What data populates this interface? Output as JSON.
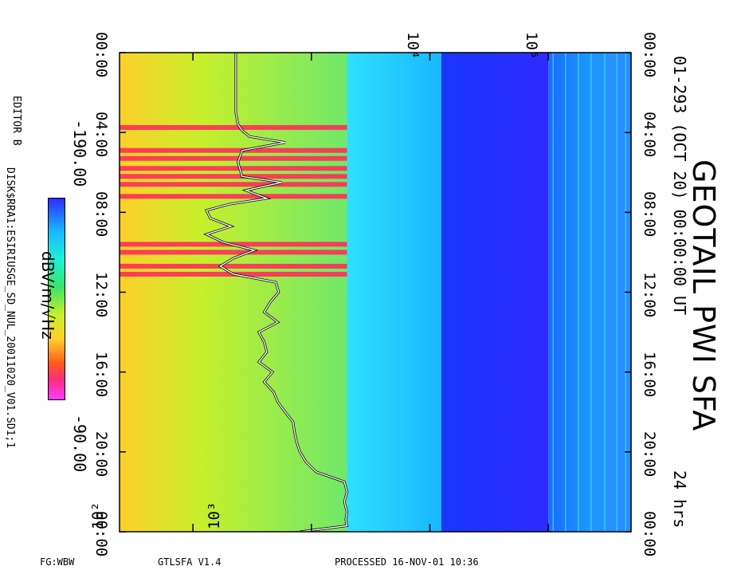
{
  "header": {
    "title": "GEOTAIL PWI SFA",
    "subtitle": "01-293 (OCT 20) 00:00:00 UT",
    "duration": "24 hrs"
  },
  "colorbar": {
    "min_label": "-190.00",
    "max_label": "-90.00",
    "unit_label": "dBV/m/√Hz"
  },
  "side_labels": {
    "editor": "EDITOR B",
    "file": "DISK$RRA1:ESIRIUSGE_SD_NUL_20011020_V01.SD1;1"
  },
  "footer": {
    "left": "FG:WBW",
    "version": "GTLSFA   V1.4",
    "processed": "PROCESSED 16-NOV-01  10:36"
  },
  "chart_data": {
    "type": "heatmap",
    "title": "GEOTAIL PWI SFA",
    "time_axis": {
      "label": "UT",
      "range_hours": [
        0,
        24
      ],
      "ticks": [
        "00:00",
        "04:00",
        "08:00",
        "12:00",
        "16:00",
        "20:00",
        "00:00"
      ],
      "tick_hours": [
        0,
        4,
        8,
        12,
        16,
        20,
        24
      ]
    },
    "frequency_axis": {
      "scale": "log",
      "unit": "Hz",
      "range": [
        24,
        500000
      ],
      "ticks": [
        "10²",
        "10³",
        "10⁴",
        "10⁵"
      ],
      "tick_values": [
        100,
        1000,
        10000,
        100000
      ],
      "band_edges_hz": [
        24,
        2000,
        12500,
        100000,
        500000
      ]
    },
    "colorbar_range_dB": [
      -190,
      -90
    ],
    "colorscale": [
      "#2d2bff",
      "#19b7ff",
      "#1cf0d8",
      "#39e46b",
      "#c8ef2b",
      "#ffd02a",
      "#ff5a1e",
      "#ff2c7a",
      "#ff3cff"
    ],
    "trace": {
      "description": "white line with black edge (profile)",
      "hours": [
        0,
        1,
        2,
        3,
        3.6,
        3.9,
        4.2,
        4.5,
        4.9,
        5.5,
        6.2,
        6.5,
        6.9,
        7.3,
        7.6,
        7.9,
        8.3,
        8.7,
        9.1,
        9.5,
        9.9,
        10.3,
        10.7,
        11.1,
        11.5,
        12.0,
        12.5,
        13.0,
        13.5,
        14.0,
        14.5,
        15.0,
        15.5,
        16.0,
        16.5,
        17.0,
        17.5,
        18.0,
        18.5,
        19.0,
        19.5,
        20.0,
        20.5,
        21.0,
        21.5,
        22.0,
        22.5,
        23.0,
        23.4,
        23.7,
        24.0
      ],
      "freq_hz": [
        230,
        230,
        230,
        230,
        240,
        260,
        300,
        600,
        260,
        240,
        260,
        560,
        280,
        420,
        200,
        130,
        140,
        210,
        130,
        180,
        330,
        220,
        170,
        220,
        500,
        530,
        450,
        400,
        520,
        360,
        400,
        420,
        360,
        470,
        400,
        480,
        520,
        600,
        700,
        720,
        750,
        800,
        900,
        1100,
        1900,
        2000,
        1900,
        2000,
        1950,
        2000,
        800
      ]
    },
    "red_burst_hours": [
      3.75,
      4.9,
      5.3,
      5.8,
      6.2,
      6.6,
      7.2,
      9.6,
      10.0,
      10.7,
      11.1
    ]
  }
}
